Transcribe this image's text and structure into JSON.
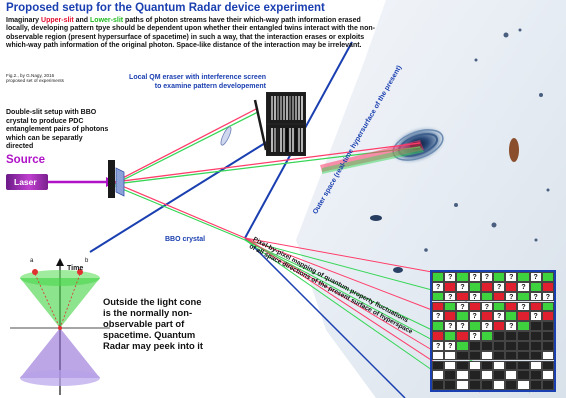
{
  "title": "Proposed setup for the Quantum Radar device experiment",
  "intro": {
    "part1": "Imaginary ",
    "upper": "Upper-slit",
    "part2": " and ",
    "lower": "Lower-slit",
    "part3": " paths of photon streams have their which-way path information erased locally, developing pattern tpye should be dependent upon whether their entangled twins interact with the non-observable region (present hypersurface of spacetime) in such a way, that the interaction erases or exploits which-way path information of the original photon. Space-like distance of the interaction may be irrelevant."
  },
  "figure_ref": {
    "line1": "Fig.2., by G.Nagy, 2016",
    "line2": "proposed set of experiments"
  },
  "eraser_label": "Local QM eraser with interference screen to examine pattern developement",
  "double_slit_label": "Double-slit setup with BBO crystal to produce PDC entanglement pairs of photons which can be separatly directed",
  "source_label": "Source",
  "laser_label": "Laser",
  "bbo_label": "BBO crystal",
  "outer_space_label": "Outer space (real-time hypersurface of the present)",
  "pixel_map_label": {
    "line1": "Pixel-by-pixel mapping of quantum property fluctuations",
    "line2": "of all space directions of the present surface of hyperspace"
  },
  "time_label": "Time",
  "cone_labels": {
    "a": "a",
    "b": "b"
  },
  "light_cone_text": "Outside the light cone is the normally non-observable part of spacetime. Quantum Radar may peek into it",
  "colors": {
    "title_blue": "#1a3fb0",
    "upper_red": "#e0102f",
    "lower_green": "#1fb81f",
    "source_purple": "#b012c8",
    "beam_red": "#ff3d6a",
    "beam_green": "#37d657",
    "cone_green": "#3fd23f",
    "cone_purple": "#8f6bd6"
  },
  "grid": {
    "rows": [
      [
        "g",
        "?",
        "g",
        "?",
        "?",
        "g",
        "?",
        "g",
        "?",
        "g"
      ],
      [
        "?",
        "r",
        "?",
        "g",
        "r",
        "?",
        "r",
        "?",
        "g",
        "r"
      ],
      [
        "g",
        "?",
        "r",
        "?",
        "g",
        "r",
        "?",
        "g",
        "?",
        "?"
      ],
      [
        "r",
        "g",
        "?",
        "r",
        "?",
        "g",
        "r",
        "?",
        "r",
        "g"
      ],
      [
        "?",
        "r",
        "g",
        "?",
        "r",
        "?",
        "g",
        "r",
        "?",
        "r"
      ],
      [
        "g",
        "?",
        "?",
        "g",
        "?",
        "r",
        "?",
        "g",
        "b",
        "b"
      ],
      [
        "r",
        "g",
        "r",
        "?",
        "g",
        "b",
        "b",
        "b",
        "b",
        "b"
      ],
      [
        "?",
        "?",
        "g",
        "b",
        "b",
        "b",
        "b",
        "b",
        "b",
        "b"
      ],
      [
        "w",
        "w",
        "b",
        "b",
        "w",
        "b",
        "b",
        "b",
        "b",
        "w"
      ],
      [
        "b",
        "w",
        "b",
        "w",
        "b",
        "w",
        "b",
        "b",
        "w",
        "b"
      ],
      [
        "w",
        "b",
        "w",
        "b",
        "w",
        "b",
        "w",
        "b",
        "b",
        "w"
      ],
      [
        "b",
        "b",
        "w",
        "b",
        "b",
        "w",
        "b",
        "w",
        "b",
        "b"
      ]
    ]
  }
}
